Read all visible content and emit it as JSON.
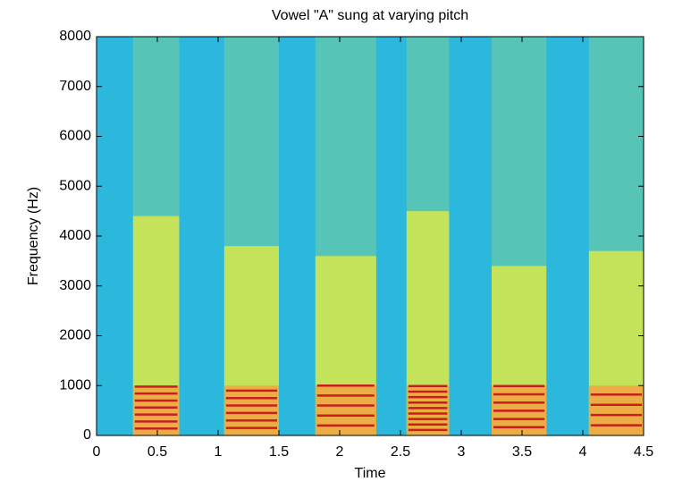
{
  "chart_data": {
    "type": "spectrogram",
    "title": "Vowel \"A\" sung at varying pitch",
    "xlabel": "Time",
    "ylabel": "Frequency (Hz)",
    "xlim": [
      0,
      4.5
    ],
    "xticks": [
      0,
      0.5,
      1,
      1.5,
      2,
      2.5,
      3,
      3.5,
      4,
      4.5
    ],
    "ylim": [
      0,
      8000
    ],
    "yticks": [
      0,
      1000,
      2000,
      3000,
      4000,
      5000,
      6000,
      7000,
      8000
    ],
    "background_color": "#2cb8dc",
    "band_color": "#d8e84a",
    "low_color": "#f5a040",
    "harmonic_color": "#c81e1e",
    "segments": [
      {
        "start": 0.3,
        "end": 0.68,
        "f0": 140,
        "top": 4400
      },
      {
        "start": 1.05,
        "end": 1.5,
        "f0": 150,
        "top": 3800
      },
      {
        "start": 1.8,
        "end": 2.3,
        "f0": 200,
        "top": 3600
      },
      {
        "start": 2.55,
        "end": 2.9,
        "f0": 110,
        "top": 4500
      },
      {
        "start": 3.25,
        "end": 3.7,
        "f0": 165,
        "top": 3400
      },
      {
        "start": 4.05,
        "end": 4.5,
        "f0": 205,
        "top": 3700
      }
    ]
  }
}
